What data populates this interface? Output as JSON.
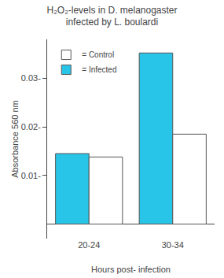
{
  "chart_data": {
    "type": "bar",
    "title": "H₂O₂-levels in D. melanogaster\ninfected by L. boulardi",
    "xlabel": "Hours post- infection",
    "ylabel": "Absorbance 560 nm",
    "categories": [
      "20-24",
      "30-34"
    ],
    "series": [
      {
        "name": "= Infected",
        "color": "#29c5e8",
        "values": [
          0.0145,
          0.0352
        ]
      },
      {
        "name": "= Control",
        "color": "#ffffff",
        "values": [
          0.0138,
          0.0185
        ]
      }
    ],
    "ylim": [
      -0.003,
      0.038
    ],
    "yticks": [
      {
        "value": 0.01,
        "label": "0.01-"
      },
      {
        "value": 0.02,
        "label": "0.02-"
      },
      {
        "value": 0.03,
        "label": "0.03-"
      }
    ],
    "grid": false,
    "legend": "upper left"
  }
}
